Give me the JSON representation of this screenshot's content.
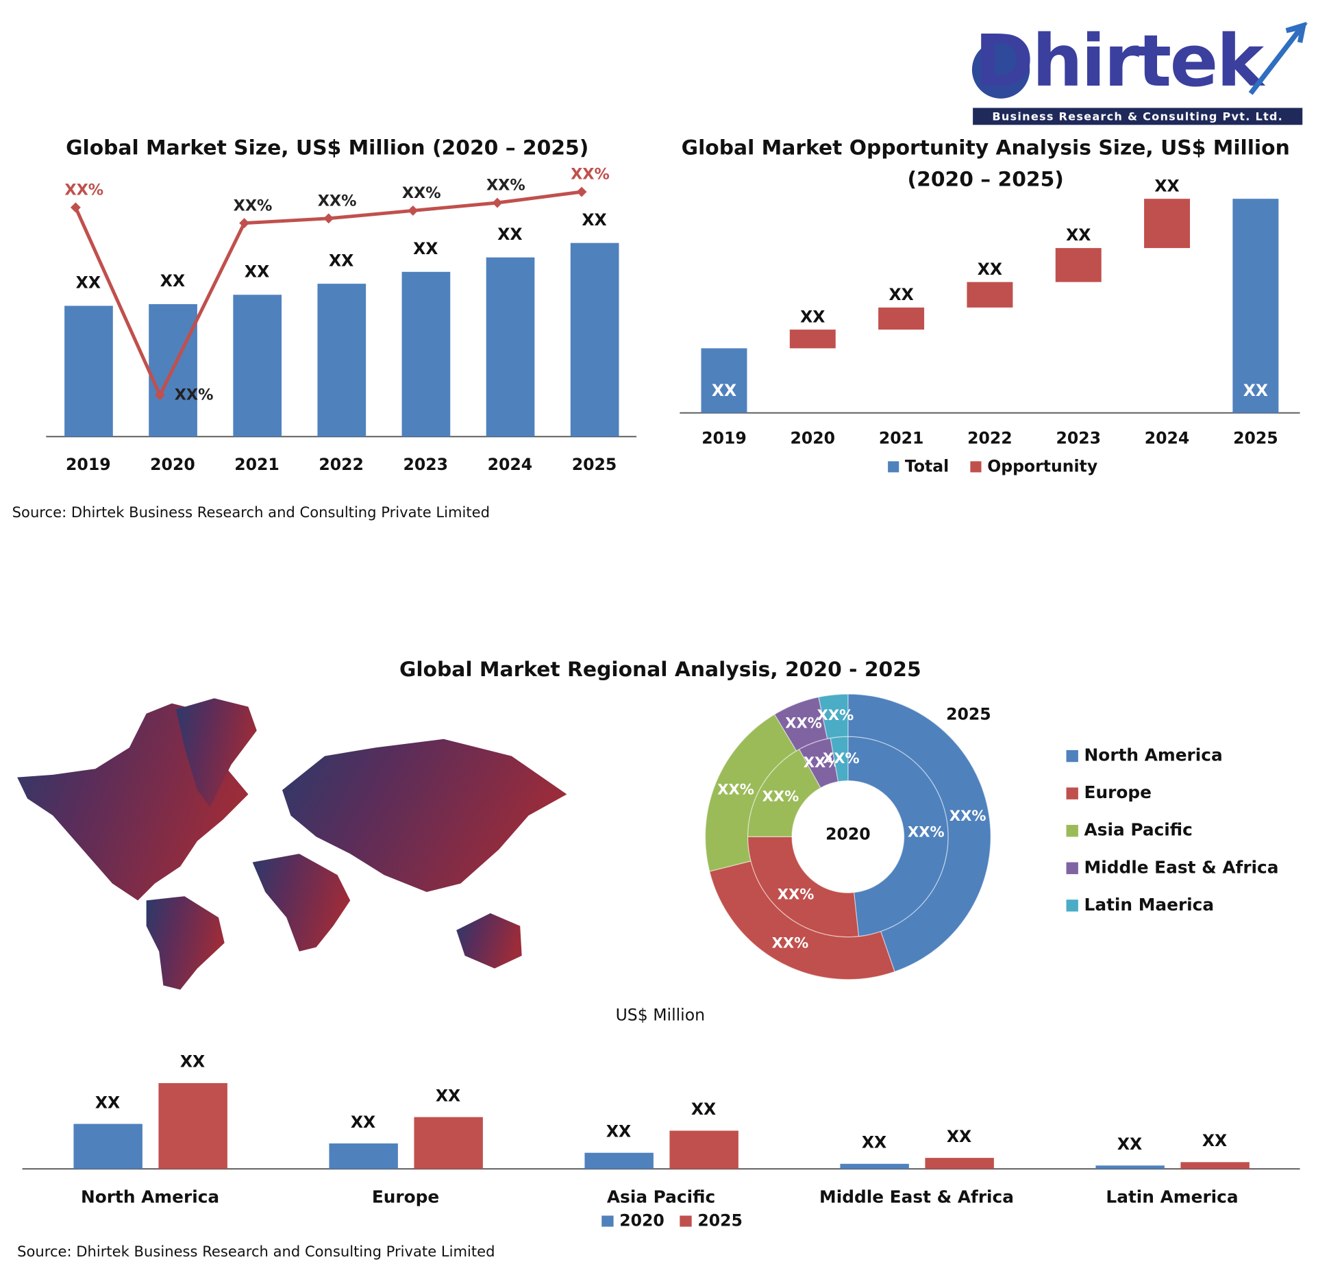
{
  "logo": {
    "name": "Dhirtek",
    "tagline": "Business Research & Consulting Pvt. Ltd."
  },
  "chart_data": [
    {
      "type": "combo",
      "title": "Global Market Size, US$ Million (2020 – 2025)",
      "categories": [
        "2019",
        "2020",
        "2021",
        "2022",
        "2023",
        "2024",
        "2025"
      ],
      "series": [
        {
          "type": "bar",
          "color": "#4f81bd",
          "values": [
            154,
            156,
            167,
            180,
            194,
            211,
            228
          ],
          "value_labels": [
            "XX",
            "XX",
            "XX",
            "XX",
            "XX",
            "XX",
            "XX"
          ]
        },
        {
          "type": "line",
          "axis": "y2",
          "color": "#c0504d",
          "values": [
            9,
            -3,
            8,
            8.3,
            8.8,
            9.3,
            10
          ],
          "value_labels": [
            "XX%",
            "XX%",
            "XX%",
            "XX%",
            "XX%",
            "XX%",
            "XX%"
          ]
        }
      ],
      "ylim": [
        0,
        250
      ],
      "y2lim": [
        -5,
        12
      ]
    },
    {
      "type": "waterfall",
      "title": [
        "Global Market Opportunity Analysis Size, US$ Million",
        "(2020 – 2025)"
      ],
      "categories": [
        "2019",
        "2020",
        "2021",
        "2022",
        "2023",
        "2024",
        "2025"
      ],
      "series": [
        {
          "name": "Total",
          "color": "#4f81bd",
          "values": [
            76,
            null,
            null,
            null,
            null,
            null,
            252
          ],
          "value_labels": [
            "XX",
            null,
            null,
            null,
            null,
            null,
            "XX"
          ]
        },
        {
          "name": "Opportunity",
          "color": "#c0504d",
          "values": [
            null,
            22,
            26,
            30,
            40,
            58,
            null
          ],
          "value_labels": [
            null,
            "XX",
            "XX",
            "XX",
            "XX",
            "XX",
            null
          ]
        }
      ],
      "ylim": [
        0,
        252
      ],
      "legend": "bottom"
    },
    {
      "type": "donut",
      "title": "Global Market Regional Analysis, 2020 - 2025",
      "categories": [
        "North America",
        "Europe",
        "Asia Pacific",
        "Middle East & Africa",
        "Latin Maerica"
      ],
      "colors": [
        "#4f81bd",
        "#c0504d",
        "#9bbb59",
        "#8064a2",
        "#4bacc6"
      ],
      "series": [
        {
          "name": "2020",
          "values": [
            48.3,
            26.7,
            16.9,
            5.3,
            2.8
          ],
          "value_labels": [
            "XX%",
            "XX%",
            "XX%",
            "XX%",
            "XX%"
          ]
        },
        {
          "name": "2025",
          "values": [
            44.7,
            26.4,
            20.3,
            5.3,
            3.3
          ],
          "value_labels": [
            "XX%",
            "XX%",
            "XX%",
            "XX%",
            "XX%"
          ]
        }
      ],
      "legend": "right"
    },
    {
      "type": "bar",
      "subtitle": "US$ Million",
      "categories": [
        "North America",
        "Europe",
        "Asia Pacific",
        "Middle East & Africa",
        "Latin America"
      ],
      "series": [
        {
          "name": "2020",
          "color": "#4f81bd",
          "values": [
            53,
            30,
            19,
            6,
            4
          ],
          "value_labels": [
            "XX",
            "XX",
            "XX",
            "XX",
            "XX"
          ]
        },
        {
          "name": "2025",
          "color": "#c0504d",
          "values": [
            101,
            61,
            45,
            13,
            8
          ],
          "value_labels": [
            "XX",
            "XX",
            "XX",
            "XX",
            "XX"
          ]
        }
      ],
      "ylim": [
        0,
        110
      ],
      "legend": "bottom"
    }
  ],
  "sources": [
    "Source: Dhirtek Business Research  and Consulting Private Limited",
    "Source: Dhirtek Business Research  and Consulting Private Limited"
  ]
}
